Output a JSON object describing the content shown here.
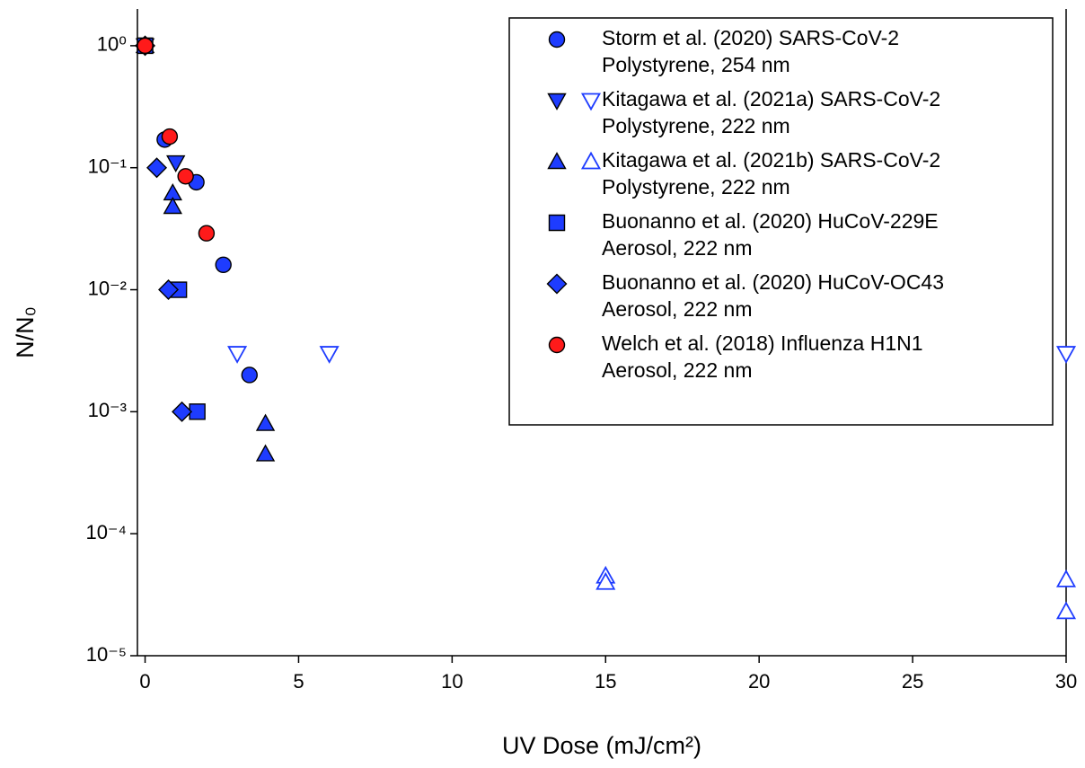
{
  "chart_data": {
    "type": "scatter",
    "x_label": "UV Dose (mJ/cm²)",
    "y_label": "N/N₀",
    "xlim": [
      -0.25,
      30
    ],
    "xticks": [
      0,
      5,
      10,
      15,
      20,
      25,
      30
    ],
    "ylim": [
      1e-05,
      2
    ],
    "log_y": true,
    "yticks": [
      {
        "value": 1,
        "label": "10⁰"
      },
      {
        "value": 0.1,
        "label": "10⁻¹"
      },
      {
        "value": 0.01,
        "label": "10⁻²"
      },
      {
        "value": 0.001,
        "label": "10⁻³"
      },
      {
        "value": 0.0001,
        "label": "10⁻⁴"
      },
      {
        "value": 1e-05,
        "label": "10⁻⁵"
      }
    ],
    "legend": "upper right",
    "series": [
      {
        "name": "Storm et al. (2020) SARS-CoV-2",
        "detail": "Polystyrene, 254 nm",
        "marker": "circle",
        "color": "#1e3cff",
        "x": [
          0,
          0.64,
          1.67,
          2.55,
          3.4
        ],
        "values": [
          1,
          0.17,
          0.076,
          0.016,
          0.002
        ],
        "open": [
          false,
          false,
          false,
          false,
          false
        ]
      },
      {
        "name": "Kitagawa et al. (2021a) SARS-CoV-2",
        "detail": "Polystyrene, 222 nm",
        "marker": "triangle-down",
        "color": "#1e3cff",
        "x": [
          0,
          1.0,
          3.0,
          6.0,
          30
        ],
        "values": [
          1,
          0.11,
          0.003,
          0.003,
          0.003
        ],
        "open": [
          false,
          false,
          true,
          true,
          true
        ]
      },
      {
        "name": "Kitagawa et al. (2021b) SARS-CoV-2",
        "detail": "Polystyrene, 222 nm",
        "marker": "triangle-up",
        "color": "#1e3cff",
        "x": [
          0,
          0.9,
          0.9,
          3.92,
          3.92,
          15,
          15,
          30,
          30
        ],
        "values": [
          1,
          0.062,
          0.048,
          0.0008,
          0.00045,
          4.5e-05,
          4e-05,
          4.2e-05,
          2.3e-05
        ],
        "open": [
          false,
          false,
          false,
          false,
          false,
          true,
          true,
          true,
          true
        ]
      },
      {
        "name": "Buonanno et al. (2020) HuCoV-229E",
        "detail": "Aerosol, 222 nm",
        "marker": "square",
        "color": "#1e3cff",
        "x": [
          0,
          1.1,
          1.7
        ],
        "values": [
          1,
          0.01,
          0.001
        ],
        "open": [
          false,
          false,
          false
        ]
      },
      {
        "name": "Buonanno et al. (2020) HuCoV-OC43",
        "detail": "Aerosol, 222 nm",
        "marker": "diamond",
        "color": "#1e3cff",
        "x": [
          0,
          0.38,
          0.76,
          1.2
        ],
        "values": [
          1,
          0.1,
          0.01,
          0.001
        ],
        "open": [
          false,
          false,
          false,
          false
        ]
      },
      {
        "name": "Welch et al. (2018) Influenza H1N1",
        "detail": "Aerosol, 222 nm",
        "marker": "circle",
        "color": "#ff1a1a",
        "x": [
          0,
          0.8,
          1.32,
          2.0
        ],
        "values": [
          1,
          0.18,
          0.085,
          0.029
        ],
        "open": [
          false,
          false,
          false,
          false
        ]
      }
    ]
  }
}
